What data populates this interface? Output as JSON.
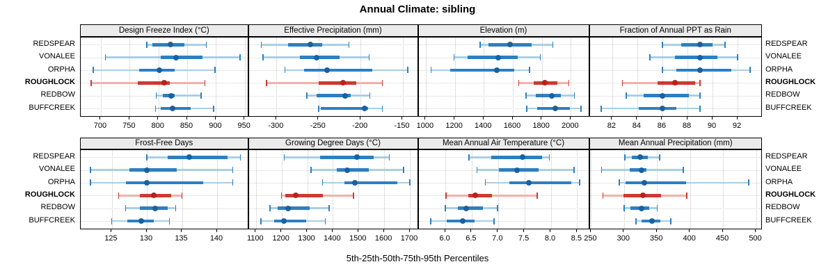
{
  "title": "Annual Climate: sibling",
  "caption": "5th-25th-50th-75th-95th Percentiles",
  "sites": [
    "REDSPEAR",
    "VONALEE",
    "ORPHA",
    "ROUGHLOCK",
    "REDBOW",
    "BUFFCREEK"
  ],
  "highlight_site": "ROUGHLOCK",
  "colors": {
    "blue_light": "#a9cfe5",
    "blue_dark": "#2d7fc1",
    "blue_dot": "#1a619f",
    "red_light": "#f2b0aa",
    "red_dark": "#cc3a31",
    "red_dot": "#b5231d",
    "strip_bg": "#ebebeb",
    "grid": "#c4c4c4"
  },
  "chart_data": {
    "type": "dotplot",
    "title": "Annual Climate: sibling",
    "xlabel": "5th-25th-50th-75th-95th Percentiles",
    "legend_position": "none",
    "grid": "dotted",
    "percentiles": [
      "5th",
      "25th",
      "50th",
      "75th",
      "95th"
    ],
    "rows_order": [
      "REDSPEAR",
      "VONALEE",
      "ORPHA",
      "ROUGHLOCK",
      "REDBOW",
      "BUFFCREEK"
    ],
    "panels": [
      {
        "title": "Design Freeze Index (°C)",
        "xlim": [
          665,
          957
        ],
        "ticks": [
          700,
          750,
          800,
          850,
          900,
          950
        ],
        "tick_labels": [
          "700",
          "750",
          "800",
          "850",
          "900",
          "950"
        ],
        "values": [
          [
            780,
            789,
            821,
            845,
            883
          ],
          [
            708,
            804,
            830,
            876,
            942
          ],
          [
            687,
            766,
            802,
            828,
            898
          ],
          [
            683,
            764,
            810,
            820,
            881
          ],
          [
            796,
            808,
            822,
            828,
            874
          ],
          [
            795,
            804,
            824,
            856,
            896
          ]
        ]
      },
      {
        "title": "Effective Precipitation (mm)",
        "xlim": [
          -333,
          -131
        ],
        "ticks": [
          -300,
          -250,
          -200,
          -150
        ],
        "tick_labels": [
          "-300",
          "-250",
          "-200",
          "-150"
        ],
        "values": [
          [
            -318,
            -286,
            -260,
            -246,
            -214
          ],
          [
            -316,
            -272,
            -252,
            -225,
            -190
          ],
          [
            -290,
            -267,
            -240,
            -186,
            -144
          ],
          [
            -312,
            -250,
            -221,
            -205,
            -174
          ],
          [
            -264,
            -252,
            -218,
            -212,
            -189
          ],
          [
            -250,
            -247,
            -195,
            -191,
            -174
          ]
        ]
      },
      {
        "title": "Elevation (m)",
        "xlim": [
          950,
          2130
        ],
        "ticks": [
          1000,
          1200,
          1400,
          1600,
          1800,
          2000
        ],
        "tick_labels": [
          "1000",
          "1200",
          "1400",
          "1600",
          "1800",
          "2000"
        ],
        "values": [
          [
            1375,
            1430,
            1580,
            1730,
            1875
          ],
          [
            1195,
            1290,
            1500,
            1635,
            1790
          ],
          [
            1035,
            1170,
            1490,
            1610,
            1715
          ],
          [
            1640,
            1745,
            1820,
            1905,
            1985
          ],
          [
            1690,
            1760,
            1870,
            1930,
            2025
          ],
          [
            1695,
            1770,
            1890,
            1995,
            2070
          ]
        ]
      },
      {
        "title": "Fraction of Annual PPT as Rain",
        "xlim": [
          80.2,
          94
        ],
        "ticks": [
          82,
          84,
          86,
          88,
          90,
          92
        ],
        "tick_labels": [
          "82",
          "84",
          "86",
          "88",
          "90",
          "92"
        ],
        "values": [
          [
            86,
            87.5,
            89,
            90,
            91
          ],
          [
            85,
            87,
            89,
            90.4,
            92
          ],
          [
            86,
            87.1,
            89,
            91.5,
            93
          ],
          [
            82.8,
            85.6,
            87,
            88.6,
            89
          ],
          [
            83.1,
            84.5,
            86,
            88.1,
            89
          ],
          [
            81.1,
            84.1,
            86,
            87.1,
            89
          ]
        ]
      },
      {
        "title": "Frost-Free Days",
        "xlim": [
          120.6,
          144.5
        ],
        "ticks": [
          125,
          130,
          135,
          140
        ],
        "tick_labels": [
          "125",
          "130",
          "135",
          "140"
        ],
        "values": [
          [
            130,
            133,
            136,
            141.5,
            143.3
          ],
          [
            122,
            127.5,
            130,
            134.3,
            142.2
          ],
          [
            122,
            127,
            130,
            138,
            142.2
          ],
          [
            126,
            129,
            131,
            133.5,
            135
          ],
          [
            127,
            129,
            131.2,
            133,
            134.1
          ],
          [
            125,
            127.2,
            129.2,
            131,
            133.2
          ]
        ]
      },
      {
        "title": "Growing Degree Days (°C)",
        "xlim": [
          1072,
          1734
        ],
        "ticks": [
          1100,
          1200,
          1300,
          1400,
          1500,
          1600,
          1700
        ],
        "tick_labels": [
          "1100",
          "1200",
          "1300",
          "1400",
          "1500",
          "1600",
          "1700"
        ],
        "values": [
          [
            1210,
            1350,
            1495,
            1560,
            1620
          ],
          [
            1315,
            1415,
            1455,
            1540,
            1675
          ],
          [
            1360,
            1445,
            1485,
            1650,
            1700
          ],
          [
            1200,
            1215,
            1255,
            1360,
            1480
          ],
          [
            1155,
            1185,
            1225,
            1310,
            1385
          ],
          [
            1120,
            1170,
            1210,
            1295,
            1370
          ]
        ]
      },
      {
        "title": "Mean Annual Air Temperature (°C)",
        "xlim": [
          5.49,
          8.74
        ],
        "ticks": [
          6.0,
          6.5,
          7.0,
          7.5,
          8.0,
          8.5
        ],
        "tick_labels": [
          "6.0",
          "6.5",
          "7.0",
          "7.5",
          "8.0",
          "8.5"
        ],
        "values": [
          [
            6.45,
            6.87,
            7.46,
            7.84,
            7.97
          ],
          [
            6.6,
            7.01,
            7.36,
            7.77,
            8.44
          ],
          [
            6.76,
            7.22,
            7.58,
            8.39,
            8.55
          ],
          [
            6.01,
            6.44,
            6.57,
            6.89,
            7.74
          ],
          [
            6.0,
            6.23,
            6.4,
            6.71,
            6.99
          ],
          [
            5.72,
            6.03,
            6.33,
            6.56,
            6.92
          ]
        ]
      },
      {
        "title": "Mean Annual Precipitation (mm)",
        "xlim": [
          248,
          510
        ],
        "ticks": [
          250,
          300,
          350,
          400,
          450,
          500
        ],
        "tick_labels": [
          "250",
          "300",
          "350",
          "400",
          "450",
          "500"
        ],
        "values": [
          [
            301,
            312,
            324,
            336,
            354
          ],
          [
            266,
            309,
            326,
            334,
            390
          ],
          [
            293,
            302,
            331,
            394,
            489
          ],
          [
            268,
            299,
            329,
            356,
            395
          ],
          [
            300,
            310,
            327,
            338,
            350
          ],
          [
            318,
            327,
            342,
            355,
            371
          ]
        ]
      }
    ]
  }
}
